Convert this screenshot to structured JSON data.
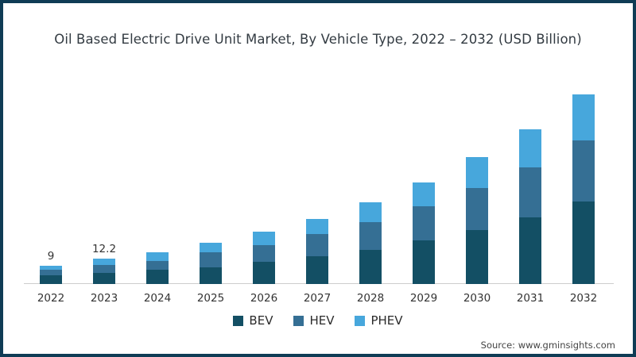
{
  "chart_data": {
    "type": "bar",
    "stacked": true,
    "title": "Oil Based Electric Drive Unit Market, By Vehicle Type, 2022 – 2032 (USD Billion)",
    "unit": "USD Billion",
    "categories": [
      "2022",
      "2023",
      "2024",
      "2025",
      "2026",
      "2027",
      "2028",
      "2029",
      "2030",
      "2031",
      "2032"
    ],
    "series": [
      {
        "name": "BEV",
        "color": "#134f64",
        "values": [
          4.1,
          5.3,
          6.9,
          8.1,
          10.8,
          13.5,
          16.5,
          21.2,
          26.2,
          32.3,
          40.0
        ]
      },
      {
        "name": "HEV",
        "color": "#356f94",
        "values": [
          2.7,
          3.8,
          4.3,
          7.3,
          8.1,
          10.8,
          13.5,
          16.5,
          20.4,
          24.2,
          29.6
        ]
      },
      {
        "name": "PHEV",
        "color": "#47a7dc",
        "values": [
          2.2,
          3.1,
          4.2,
          4.6,
          6.5,
          7.3,
          9.6,
          11.5,
          15.0,
          18.5,
          22.3
        ]
      }
    ],
    "totals": [
      9.0,
      12.2,
      15.4,
      20.0,
      25.4,
      31.6,
      39.6,
      49.2,
      61.6,
      75.0,
      91.9
    ],
    "data_labels": [
      "9",
      "12.2",
      "",
      "",
      "",
      "",
      "",
      "",
      "",
      "",
      ""
    ],
    "xlabel": "",
    "ylabel": "",
    "ylim": [
      0,
      100
    ],
    "grid": false,
    "legend_position": "bottom"
  },
  "source": "Source: www.gminsights.com",
  "colors": {
    "frame_border": "#0f3c55",
    "axis_line": "#cccccc",
    "text": "#333333"
  }
}
